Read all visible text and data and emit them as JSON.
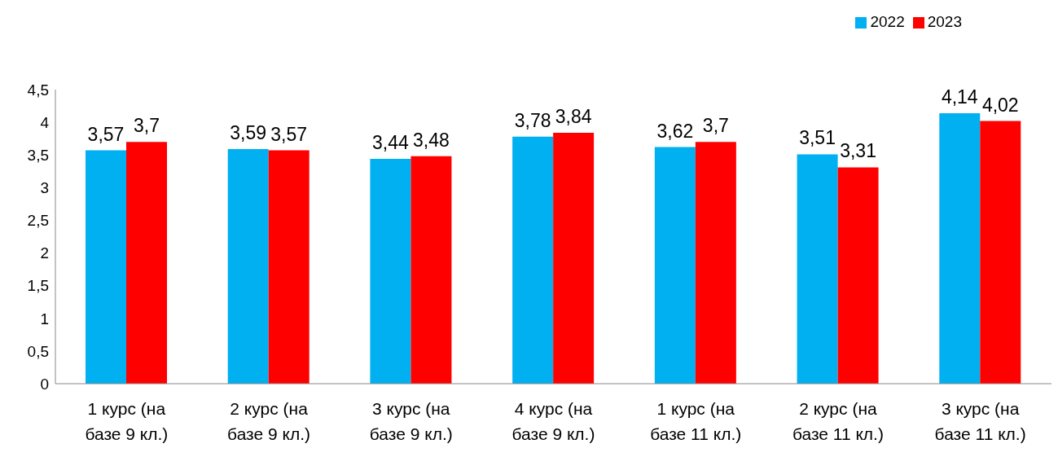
{
  "chart_data": {
    "type": "bar",
    "categories": [
      "1 курс (на базе 9 кл.)",
      "2 курс (на базе 9 кл.)",
      "3 курс (на базе 9 кл.)",
      "4 курс (на базе 9 кл.)",
      "1 курс (на базе 11 кл.)",
      "2 курс (на базе 11 кл.)",
      "3 курс (на базе 11 кл.)"
    ],
    "series": [
      {
        "name": "2022",
        "color": "#00b0f0",
        "values": [
          3.57,
          3.59,
          3.44,
          3.78,
          3.62,
          3.51,
          4.14
        ],
        "value_labels": [
          "3,57",
          "3,59",
          "3,44",
          "3,78",
          "3,62",
          "3,51",
          "4,14"
        ]
      },
      {
        "name": "2023",
        "color": "#ff0000",
        "values": [
          3.7,
          3.57,
          3.48,
          3.84,
          3.7,
          3.31,
          4.02
        ],
        "value_labels": [
          "3,7",
          "3,57",
          "3,48",
          "3,84",
          "3,7",
          "3,31",
          "4,02"
        ]
      }
    ],
    "ylim": [
      0,
      4.5
    ],
    "yticks": [
      0,
      {
        "value": 0.5,
        "label": "0,5"
      },
      1,
      {
        "value": 1.5,
        "label": "1,5"
      },
      2,
      {
        "value": 2.5,
        "label": "2,5"
      },
      3,
      {
        "value": 3.5,
        "label": "3,5"
      },
      4,
      {
        "value": 4.5,
        "label": "4,5"
      }
    ],
    "grid": false,
    "legend": "top right"
  }
}
